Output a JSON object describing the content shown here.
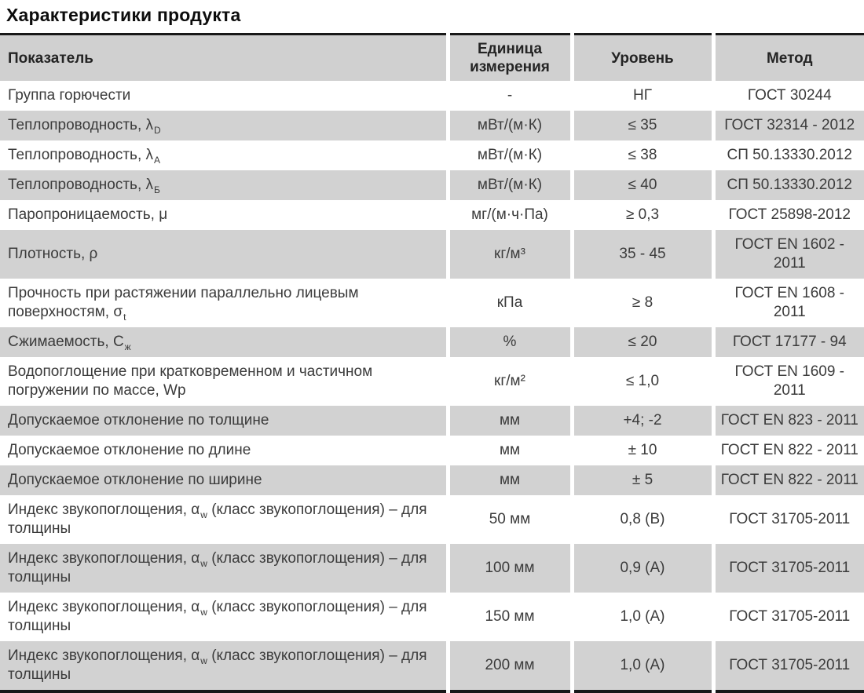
{
  "page": {
    "title": "Характеристики продукта"
  },
  "colors": {
    "stripe_gray": "#d2d2d2",
    "header_gray": "#d0d0d0",
    "border_dark": "#181818",
    "body_text": "#3b3b3b",
    "title_text": "#0d0d0d",
    "separator_white": "#ffffff"
  },
  "table": {
    "headers": {
      "indicator": "Показатель",
      "unit": "Единица измерения",
      "level": "Уровень",
      "method": "Метод"
    },
    "rows": [
      {
        "pre": "Группа горючести",
        "sub": "",
        "post": "",
        "unit": "-",
        "level": "НГ",
        "method": "ГОСТ 30244"
      },
      {
        "pre": "Теплопроводность, λ",
        "sub": "D",
        "post": "",
        "unit": "мВт/(м·К)",
        "level": "≤ 35",
        "method": "ГОСТ 32314 - 2012"
      },
      {
        "pre": "Теплопроводность, λ",
        "sub": "А",
        "post": "",
        "unit": "мВт/(м·К)",
        "level": "≤ 38",
        "method": "СП 50.13330.2012"
      },
      {
        "pre": "Теплопроводность, λ",
        "sub": "Б",
        "post": "",
        "unit": "мВт/(м·К)",
        "level": "≤ 40",
        "method": "СП 50.13330.2012"
      },
      {
        "pre": "Паропроницаемость, μ",
        "sub": "",
        "post": "",
        "unit": "мг/(м·ч·Па)",
        "level": "≥ 0,3",
        "method": "ГОСТ 25898-2012"
      },
      {
        "pre": "Плотность, ρ",
        "sub": "",
        "post": "",
        "unit": "кг/м³",
        "level": "35 - 45",
        "method": "ГОСТ EN 1602 - 2011"
      },
      {
        "pre": "Прочность при растяжении параллельно лицевым поверхностям, σ",
        "sub": "t",
        "post": "",
        "unit": "кПа",
        "level": "≥ 8",
        "method": "ГОСТ EN 1608 - 2011"
      },
      {
        "pre": "Сжимаемость, С",
        "sub": "ж",
        "post": "",
        "unit": "%",
        "level": "≤ 20",
        "method": "ГОСТ 17177 - 94"
      },
      {
        "pre": "Водопоглощение при кратковременном и частичном погружении по массе, Wp",
        "sub": "",
        "post": "",
        "unit": "кг/м²",
        "level": "≤ 1,0",
        "method": "ГОСТ EN 1609 - 2011"
      },
      {
        "pre": "Допускаемое отклонение по толщине",
        "sub": "",
        "post": "",
        "unit": "мм",
        "level": "+4; -2",
        "method": "ГОСТ EN 823 - 2011"
      },
      {
        "pre": "Допускаемое отклонение по длине",
        "sub": "",
        "post": "",
        "unit": "мм",
        "level": "± 10",
        "method": "ГОСТ EN 822 - 2011"
      },
      {
        "pre": "Допускаемое отклонение по ширине",
        "sub": "",
        "post": "",
        "unit": "мм",
        "level": "± 5",
        "method": "ГОСТ EN 822 - 2011"
      },
      {
        "pre": "Индекс звукопоглощения, α",
        "sub": "w",
        "post": " (класс звукопоглощения) – для толщины",
        "unit": "50 мм",
        "level": "0,8 (В)",
        "method": "ГОСТ 31705-2011"
      },
      {
        "pre": "Индекс звукопоглощения, α",
        "sub": "w",
        "post": " (класс звукопоглощения) – для толщины",
        "unit": "100 мм",
        "level": "0,9 (А)",
        "method": "ГОСТ 31705-2011"
      },
      {
        "pre": "Индекс звукопоглощения, α",
        "sub": "w",
        "post": " (класс звукопоглощения) – для толщины",
        "unit": "150 мм",
        "level": "1,0 (А)",
        "method": "ГОСТ 31705-2011"
      },
      {
        "pre": "Индекс звукопоглощения, α",
        "sub": "w",
        "post": " (класс звукопоглощения) – для толщины",
        "unit": "200 мм",
        "level": "1,0 (А)",
        "method": "ГОСТ 31705-2011"
      }
    ]
  }
}
